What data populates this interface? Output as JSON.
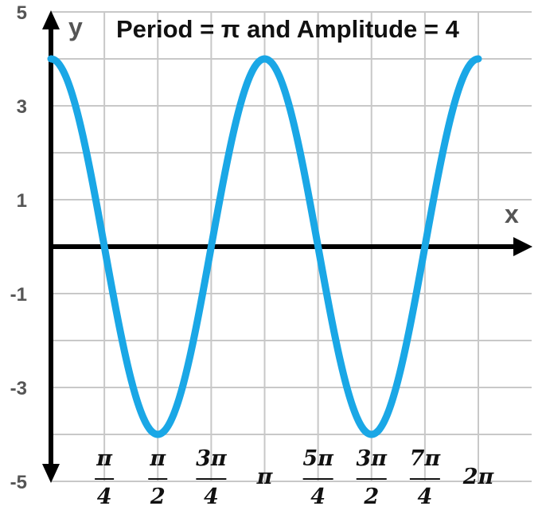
{
  "chart_data": {
    "type": "line",
    "title": "Period = π and Amplitude = 4",
    "xlabel": "x",
    "ylabel": "y",
    "function": "4cos(2x)",
    "xlim": [
      0,
      6.2832
    ],
    "ylim": [
      -5,
      5
    ],
    "y_ticks": [
      "5",
      "3",
      "1",
      "-1",
      "-3",
      "-5"
    ],
    "y_tick_values": [
      5,
      3,
      1,
      -1,
      -3,
      -5
    ],
    "x_ticks": [
      {
        "value": 0.7854,
        "num": "π",
        "den": "4"
      },
      {
        "value": 1.5708,
        "num": "π",
        "den": "2"
      },
      {
        "value": 2.3562,
        "num": "3π",
        "den": "4"
      },
      {
        "value": 3.1416,
        "label": "π"
      },
      {
        "value": 3.927,
        "num": "5π",
        "den": "4"
      },
      {
        "value": 4.7124,
        "num": "3π",
        "den": "2"
      },
      {
        "value": 5.4978,
        "num": "7π",
        "den": "4"
      },
      {
        "value": 6.2832,
        "label": "2π"
      }
    ],
    "series": [
      {
        "color": "#1aa7e6",
        "x": [
          0,
          0.3927,
          0.7854,
          1.1781,
          1.5708,
          1.9635,
          2.3562,
          2.7489,
          3.1416,
          3.5343,
          3.927,
          4.3197,
          4.7124,
          5.1051,
          5.4978,
          5.8905,
          6.2832
        ],
        "y": [
          4,
          2.83,
          0,
          -2.83,
          -4,
          -2.83,
          0,
          2.83,
          4,
          2.83,
          0,
          -2.83,
          -4,
          -2.83,
          0,
          2.83,
          4
        ]
      }
    ],
    "grid": true,
    "legend": "none"
  },
  "colors": {
    "curve": "#1aa7e6",
    "axis": "#000000",
    "grid": "#c8c8c8"
  }
}
